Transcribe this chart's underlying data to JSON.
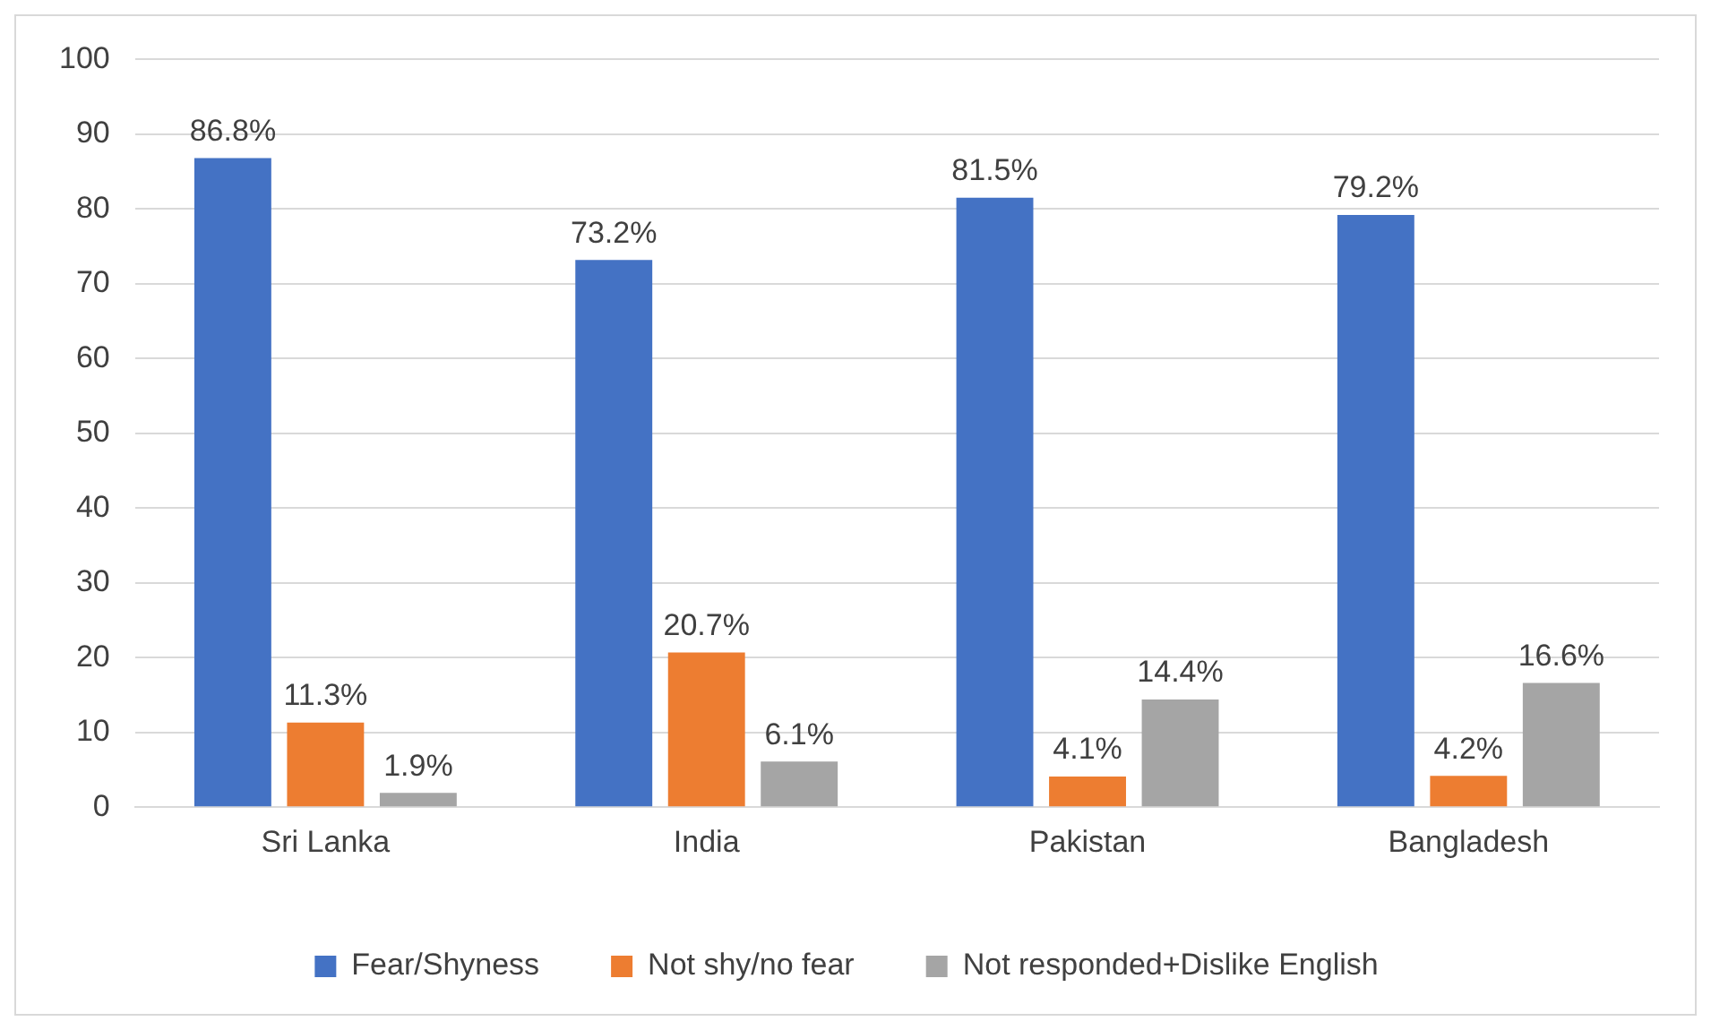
{
  "chart_data": {
    "type": "bar",
    "categories": [
      "Sri Lanka",
      "India",
      "Pakistan",
      "Bangladesh"
    ],
    "series": [
      {
        "name": "Fear/Shyness",
        "color": "#4472c4",
        "values": [
          86.8,
          73.2,
          81.5,
          79.2
        ],
        "value_labels": [
          "86.8%",
          "73.2%",
          "81.5%",
          "79.2%"
        ]
      },
      {
        "name": "Not shy/no fear",
        "color": "#ed7d31",
        "values": [
          11.3,
          20.7,
          4.1,
          4.2
        ],
        "value_labels": [
          "11.3%",
          "20.7%",
          "4.1%",
          "4.2%"
        ]
      },
      {
        "name": "Not responded+Dislike English",
        "color": "#a5a5a5",
        "values": [
          1.9,
          6.1,
          14.4,
          16.6
        ],
        "value_labels": [
          "1.9%",
          "6.1%",
          "14.4%",
          "16.6%"
        ]
      }
    ],
    "ylim": [
      0,
      100
    ],
    "yticks": [
      0,
      10,
      20,
      30,
      40,
      50,
      60,
      70,
      80,
      90,
      100
    ],
    "grid": "y",
    "legend": "bottom"
  }
}
